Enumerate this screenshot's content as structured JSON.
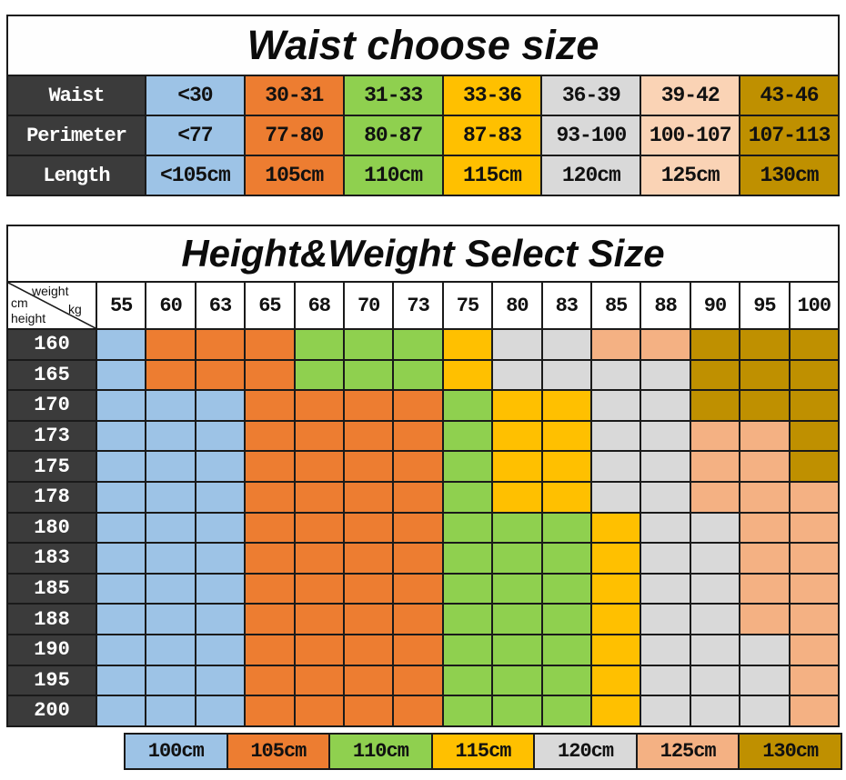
{
  "colors": {
    "dark_header": "#3B3B3B",
    "blue": "#9DC3E6",
    "orange": "#ED7D31",
    "green": "#8FD04F",
    "yellow": "#FFC000",
    "gray": "#D9D9D9",
    "peach": "#F4B183",
    "light_peach": "#FAD3B5",
    "gold": "#BF9000",
    "grid_line": "#1A1A1A"
  },
  "chart_data": [
    {
      "type": "table",
      "title": "Waist choose size",
      "header_column": [
        "Waist",
        "Perimeter",
        "Length"
      ],
      "columns_colors": [
        "blue",
        "orange",
        "green",
        "yellow",
        "gray",
        "light_peach",
        "gold"
      ],
      "rows": [
        [
          "<30",
          "30-31",
          "31-33",
          "33-36",
          "36-39",
          "39-42",
          "43-46"
        ],
        [
          "<77",
          "77-80",
          "80-87",
          "87-83",
          "93-100",
          "100-107",
          "107-113"
        ],
        [
          "<105cm",
          "105cm",
          "110cm",
          "115cm",
          "120cm",
          "125cm",
          "130cm"
        ]
      ]
    },
    {
      "type": "heatmap",
      "title": "Height&Weight Select Size",
      "corner": {
        "top": "weight",
        "top_unit": "kg",
        "left_unit": "cm",
        "left": "height"
      },
      "x_ticks": [
        "55",
        "60",
        "63",
        "65",
        "68",
        "70",
        "73",
        "75",
        "80",
        "83",
        "85",
        "88",
        "90",
        "95",
        "100"
      ],
      "y_ticks": [
        "160",
        "165",
        "170",
        "173",
        "175",
        "178",
        "180",
        "183",
        "185",
        "188",
        "190",
        "195",
        "200"
      ],
      "cell_size_cm": [
        [
          100,
          105,
          105,
          105,
          110,
          110,
          110,
          115,
          120,
          120,
          125,
          125,
          130,
          130,
          130
        ],
        [
          100,
          105,
          105,
          105,
          110,
          110,
          110,
          115,
          120,
          120,
          120,
          120,
          130,
          130,
          130
        ],
        [
          100,
          100,
          100,
          105,
          105,
          105,
          105,
          110,
          115,
          115,
          120,
          120,
          130,
          130,
          130
        ],
        [
          100,
          100,
          100,
          105,
          105,
          105,
          105,
          110,
          115,
          115,
          120,
          120,
          125,
          125,
          130
        ],
        [
          100,
          100,
          100,
          105,
          105,
          105,
          105,
          110,
          115,
          115,
          120,
          120,
          125,
          125,
          130
        ],
        [
          100,
          100,
          100,
          105,
          105,
          105,
          105,
          110,
          115,
          115,
          120,
          120,
          125,
          125,
          125
        ],
        [
          100,
          100,
          100,
          105,
          105,
          105,
          105,
          110,
          110,
          110,
          115,
          120,
          120,
          125,
          125
        ],
        [
          100,
          100,
          100,
          105,
          105,
          105,
          105,
          110,
          110,
          110,
          115,
          120,
          120,
          125,
          125
        ],
        [
          100,
          100,
          100,
          105,
          105,
          105,
          105,
          110,
          110,
          110,
          115,
          120,
          120,
          125,
          125
        ],
        [
          100,
          100,
          100,
          105,
          105,
          105,
          105,
          110,
          110,
          110,
          115,
          120,
          120,
          125,
          125
        ],
        [
          100,
          100,
          100,
          105,
          105,
          105,
          105,
          110,
          110,
          110,
          115,
          120,
          120,
          120,
          125
        ],
        [
          100,
          100,
          100,
          105,
          105,
          105,
          105,
          110,
          110,
          110,
          115,
          120,
          120,
          120,
          125
        ],
        [
          100,
          100,
          100,
          105,
          105,
          105,
          105,
          110,
          110,
          110,
          115,
          120,
          120,
          120,
          125
        ]
      ],
      "legend": [
        {
          "label": "100cm",
          "color": "blue"
        },
        {
          "label": "105cm",
          "color": "orange"
        },
        {
          "label": "110cm",
          "color": "green"
        },
        {
          "label": "115cm",
          "color": "yellow"
        },
        {
          "label": "120cm",
          "color": "gray"
        },
        {
          "label": "125cm",
          "color": "peach"
        },
        {
          "label": "130cm",
          "color": "gold"
        }
      ]
    }
  ]
}
